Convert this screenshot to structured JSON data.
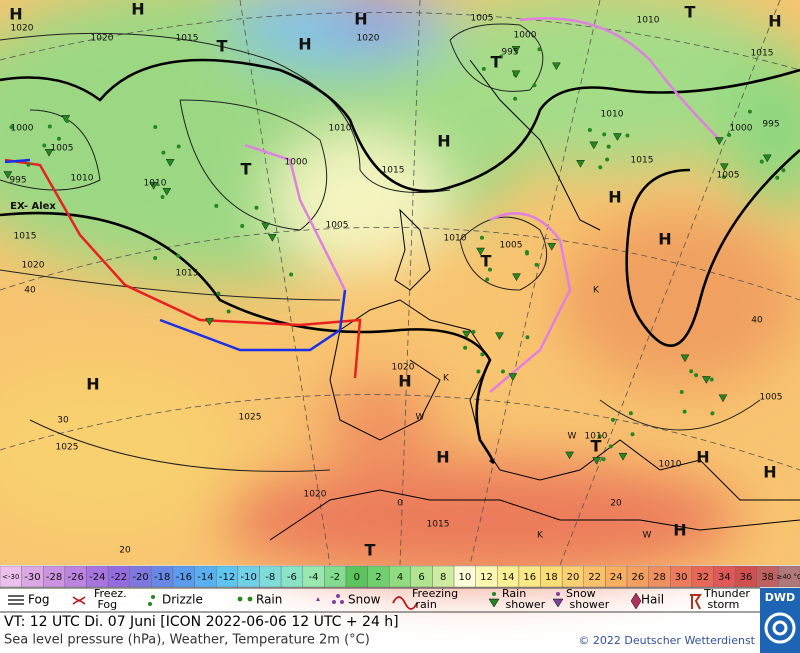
{
  "map": {
    "labels": [
      "H",
      "1020",
      "H",
      "1020",
      "1015",
      "T",
      "H",
      "H",
      "1020",
      "1005",
      "1000",
      "995",
      "T",
      "1010",
      "T",
      "H",
      "1015",
      "1010",
      "H",
      "1010",
      "1000",
      "1005",
      "1010",
      "995",
      "EX- Alex",
      "T",
      "1000",
      "1010",
      "1015",
      "1000",
      "995",
      "1005",
      "1015",
      "H",
      "H",
      "1015",
      "1020",
      "40",
      "1005",
      "1010",
      "1005",
      "T",
      "1015",
      "K",
      "40",
      "H",
      "1020",
      "H",
      "K",
      "W",
      "1025",
      "30",
      "1025",
      "1010",
      "T",
      "1010",
      "H",
      "H",
      "1005",
      "H",
      "W",
      "1020",
      "0",
      "1015",
      "20",
      "K",
      "W",
      "H",
      "20",
      "T"
    ]
  },
  "scale": {
    "labels": [
      "<-30",
      -30,
      -28,
      -26,
      -24,
      -22,
      -20,
      -18,
      -16,
      -14,
      -12,
      -10,
      -8,
      -6,
      -4,
      -2,
      0,
      2,
      4,
      6,
      8,
      10,
      12,
      14,
      16,
      18,
      20,
      22,
      24,
      26,
      28,
      30,
      32,
      34,
      36,
      38,
      "≥40 °C"
    ],
    "colors": [
      "#ecc0ec",
      "#dca8e4",
      "#cc94e0",
      "#bc84e0",
      "#a874e0",
      "#946ce0",
      "#7c78e0",
      "#6888e8",
      "#5c9cf0",
      "#58b0f0",
      "#60c4f0",
      "#70d0e8",
      "#80dcd8",
      "#88e4c4",
      "#98e8b0",
      "#84dc90",
      "#5cc45c",
      "#70d070",
      "#90dc80",
      "#b0e490",
      "#d0eca0",
      "#fcfcd8",
      "#fcf8b4",
      "#fcf094",
      "#fce884",
      "#fcdc74",
      "#fcd070",
      "#fcc068",
      "#f8b060",
      "#f4a060",
      "#f09060",
      "#ec7c5c",
      "#e86858",
      "#e05858",
      "#d05050",
      "#c06060",
      "#b07878"
    ]
  },
  "legend": [
    "Fog",
    "Freez. Fog",
    "Drizzle",
    "Rain",
    "Snow",
    "Freezing rain",
    "Rain shower",
    "Snow shower",
    "Hail",
    "Thunder storm"
  ],
  "footer": {
    "valid_time": "VT: 12 UTC Di.  07 Juni [ICON 2022-06-06  12 UTC + 24 h]",
    "description": "Sea level pressure (hPa), Weather, Temperature 2m (°C)",
    "copyright": "© 2022 Deutscher Wetterdienst",
    "logo": "DWD"
  }
}
